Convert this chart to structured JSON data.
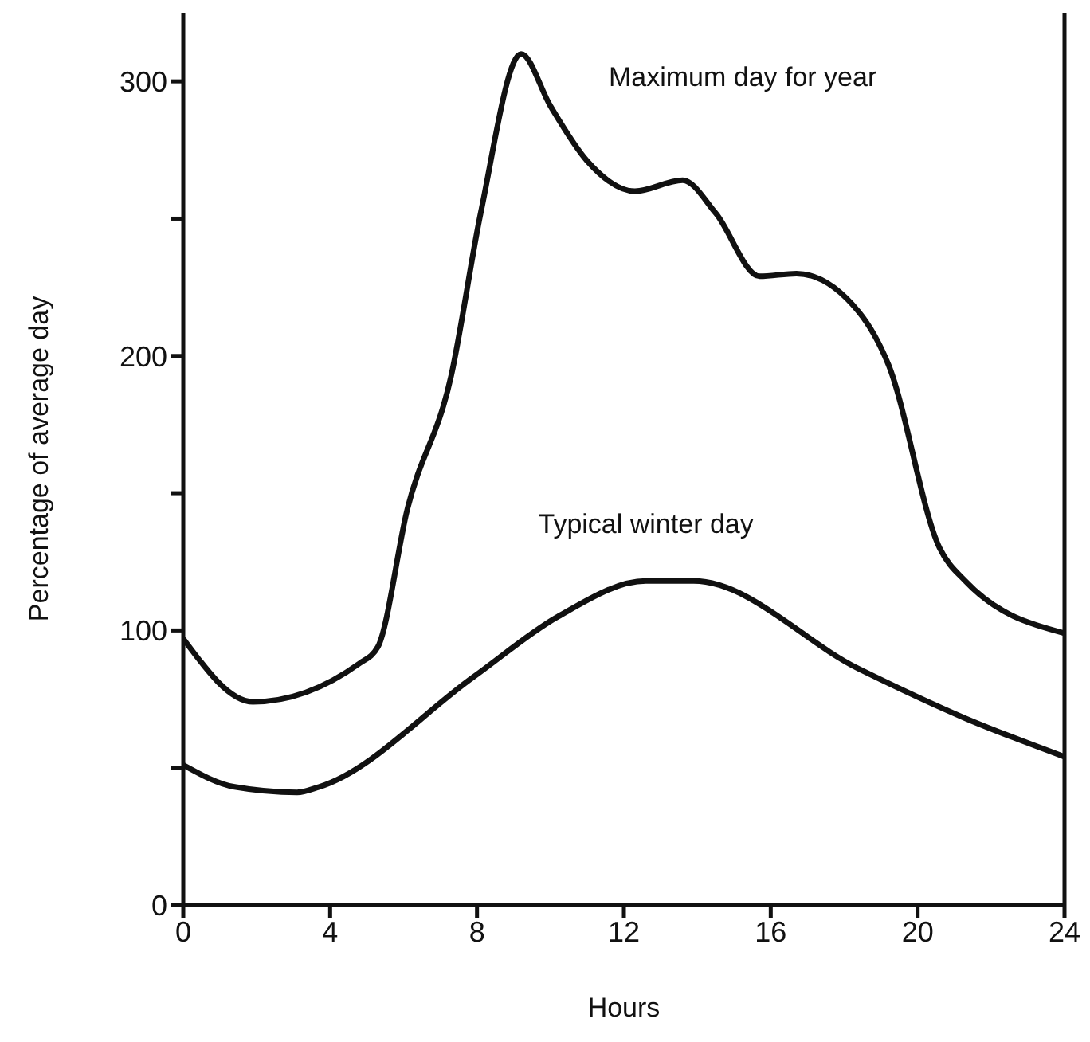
{
  "chart_data": {
    "type": "line",
    "xlabel": "Hours",
    "ylabel": "Percentage of average day",
    "xlim": [
      0,
      24
    ],
    "xticks": [
      0,
      4,
      8,
      12,
      16,
      20,
      24
    ],
    "ylim": [
      0,
      325
    ],
    "yticks": [
      {
        "value": 0,
        "label": "0"
      },
      {
        "value": 50,
        "label": null
      },
      {
        "value": 100,
        "label": "100"
      },
      {
        "value": 150,
        "label": null
      },
      {
        "value": 200,
        "label": "200"
      },
      {
        "value": 250,
        "label": null
      },
      {
        "value": 300,
        "label": "300"
      }
    ],
    "grid": false,
    "marker": "none",
    "line_style": "solid",
    "series": [
      {
        "name": "Maximum day for year",
        "color": "#111111",
        "x": [
          0,
          1.9,
          4.8,
          5.3,
          6.1,
          7.3,
          8.1,
          9.2,
          10,
          11,
          12.3,
          13.6,
          14.5,
          15.7,
          16.7,
          18.4,
          19.2,
          20.6,
          21.3,
          24
        ],
        "values": [
          97,
          74,
          88,
          94,
          144,
          193,
          252,
          310,
          291,
          271,
          260,
          264,
          252,
          229,
          230,
          216,
          197,
          130,
          118,
          99
        ]
      },
      {
        "name": "Typical winter day",
        "color": "#111111",
        "x": [
          0,
          1.4,
          3.1,
          3.7,
          7.9,
          10.2,
          12.6,
          13.9,
          18.4,
          21.3,
          24
        ],
        "values": [
          51,
          43,
          41,
          43,
          83,
          105,
          118,
          118,
          86,
          68,
          54
        ]
      }
    ]
  }
}
